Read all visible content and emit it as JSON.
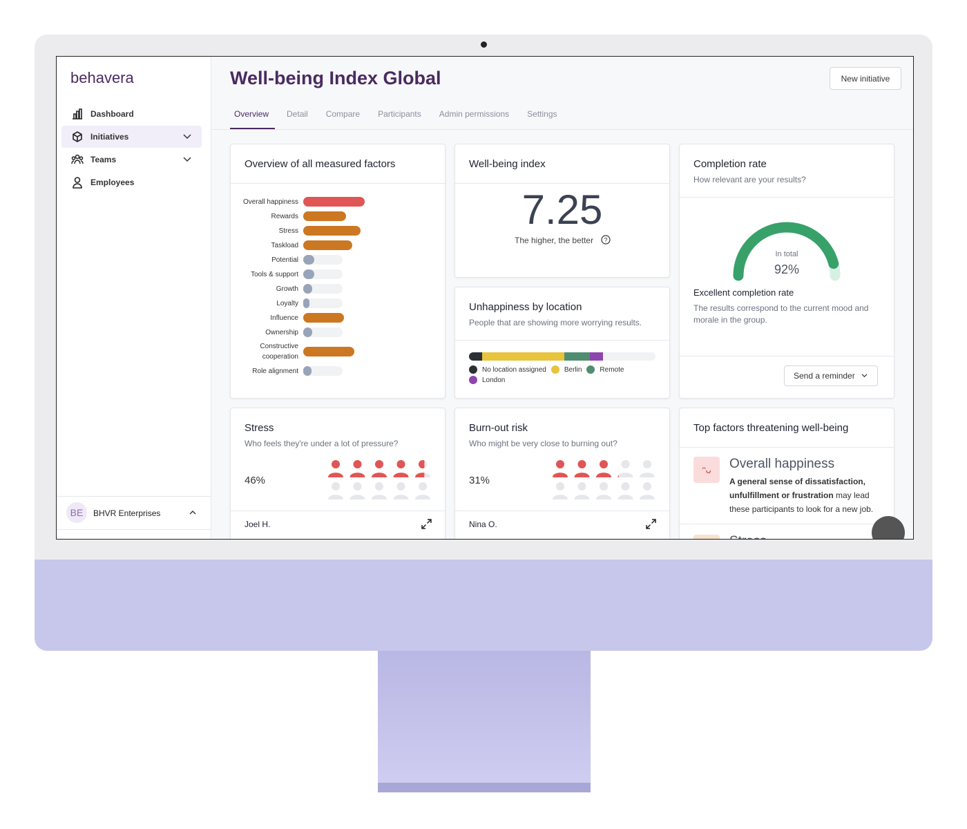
{
  "sidebar": {
    "logo": "behavera",
    "nav": [
      {
        "label": "Dashboard"
      },
      {
        "label": "Initiatives"
      },
      {
        "label": "Teams"
      },
      {
        "label": "Employees"
      }
    ],
    "org": {
      "initials": "BE",
      "name": "BHVR Enterprises"
    }
  },
  "header": {
    "title": "Well-being Index Global",
    "button": "New initiative",
    "tabs": [
      "Overview",
      "Detail",
      "Compare",
      "Participants",
      "Admin permissions",
      "Settings"
    ]
  },
  "factors": {
    "title": "Overview of all measured factors",
    "categories": [
      "Overall happiness",
      "Rewards",
      "Stress",
      "Taskload",
      "Potential",
      "Tools & support",
      "Growth",
      "Loyalty",
      "Influence",
      "Ownership",
      "Constructive cooperation",
      "Role alignment"
    ],
    "values": [
      89,
      62,
      83,
      71,
      16,
      16,
      13,
      9,
      59,
      13,
      74,
      12
    ],
    "colors": [
      "#e05555",
      "#cc7722",
      "#cc7722",
      "#cc7722",
      "#98a4b8",
      "#98a4b8",
      "#98a4b8",
      "#98a4b8",
      "#cc7722",
      "#98a4b8",
      "#cc7722",
      "#98a4b8"
    ]
  },
  "wellbeing": {
    "title": "Well-being index",
    "value": "7.25",
    "caption": "The higher, the better"
  },
  "completion": {
    "title": "Completion rate",
    "subtitle": "How relevant are your results?",
    "total_label": "In total",
    "value": 92,
    "value_label": "92%",
    "status": "Excellent completion rate",
    "description": "The results correspond to the current mood and morale in the group.",
    "button": "Send a reminder"
  },
  "unhappiness": {
    "title": "Unhappiness by location",
    "subtitle": "People that are showing more worrying results.",
    "series": [
      {
        "name": "No location assigned",
        "color": "#2b2f36",
        "value": 7
      },
      {
        "name": "Berlin",
        "color": "#e8c33c",
        "value": 44
      },
      {
        "name": "Remote",
        "color": "#4f8d71",
        "value": 14
      },
      {
        "name": "London",
        "color": "#8e44ad",
        "value": 7
      }
    ]
  },
  "stress": {
    "title": "Stress",
    "subtitle": "Who feels they're under a lot of pressure?",
    "value": 46,
    "value_label": "46%",
    "person": "Joel H."
  },
  "burnout": {
    "title": "Burn-out risk",
    "subtitle": "Who might be very close to burning out?",
    "value": 31,
    "value_label": "31%",
    "person": "Nina O."
  },
  "threats": {
    "title": "Top factors threatening well-being",
    "items": [
      {
        "name": "Overall happiness",
        "bold": "A general sense of dissatisfaction, unfulfillment or frustration",
        "text": " may lead these participants to look for a new job."
      },
      {
        "name": "Stress"
      }
    ]
  }
}
